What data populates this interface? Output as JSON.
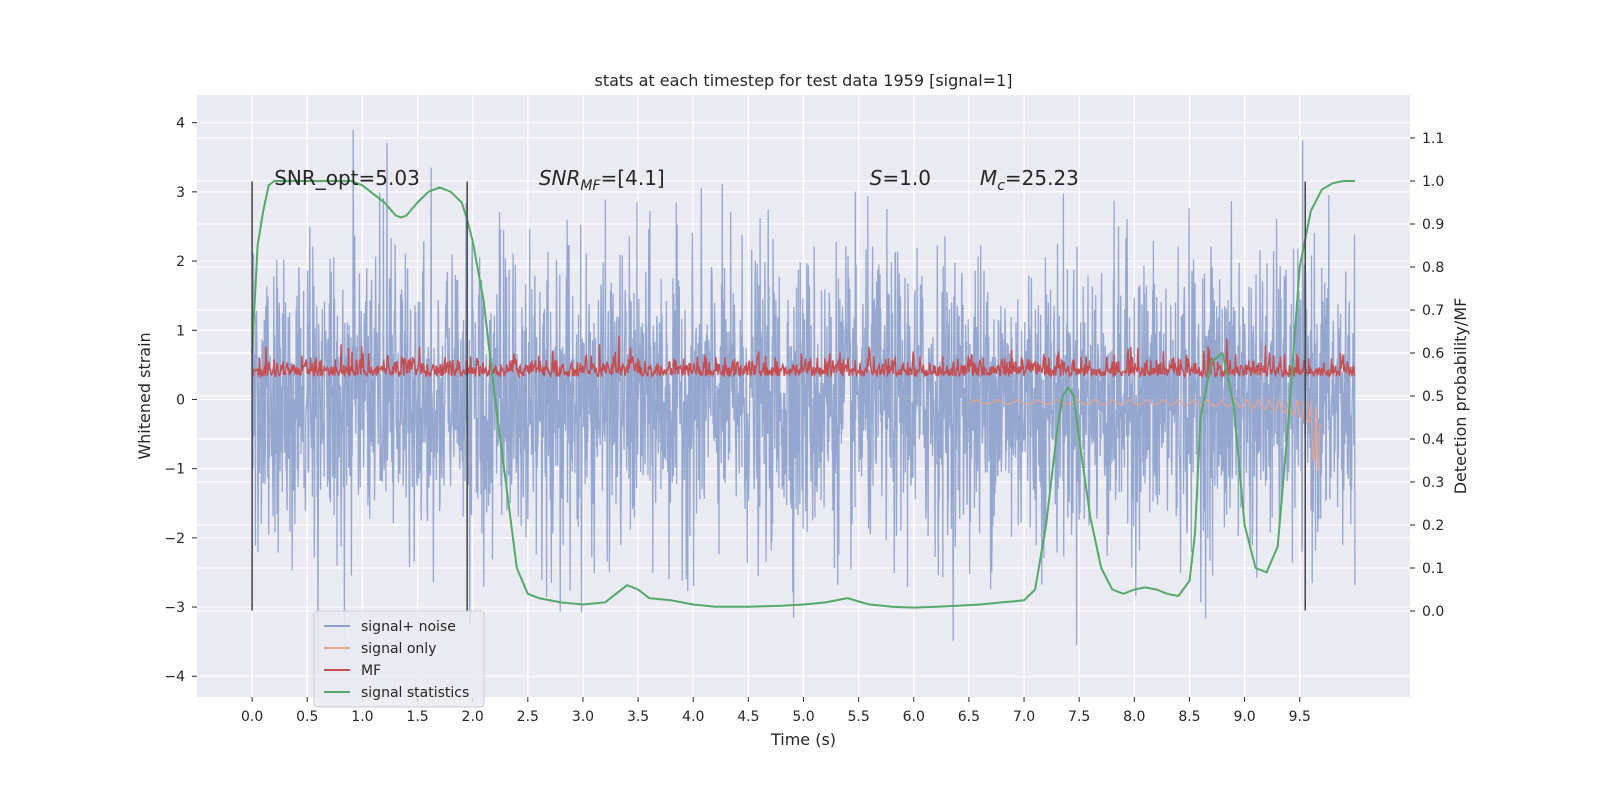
{
  "chart_data": {
    "type": "line",
    "title": "stats at each timestep for test data 1959 [signal=1]",
    "xlabel": "Time (s)",
    "ylabel": "Whitened strain",
    "ylabel_right": "Detection probability/MF",
    "xlim": [
      -0.5,
      10.5
    ],
    "ylim": [
      -4.3,
      4.4
    ],
    "ylim_right": [
      -0.2,
      1.2
    ],
    "x_ticks": [
      0.0,
      0.5,
      1.0,
      1.5,
      2.0,
      2.5,
      3.0,
      3.5,
      4.0,
      4.5,
      5.0,
      5.5,
      6.0,
      6.5,
      7.0,
      7.5,
      8.0,
      8.5,
      9.0,
      9.5
    ],
    "x_tick_labels": [
      "0.0",
      "0.5",
      "1.0",
      "1.5",
      "2.0",
      "2.5",
      "3.0",
      "3.5",
      "4.0",
      "4.5",
      "5.0",
      "5.5",
      "6.0",
      "6.5",
      "7.0",
      "7.5",
      "8.0",
      "8.5",
      "9.0",
      "9.5"
    ],
    "y_ticks": [
      -4,
      -3,
      -2,
      -1,
      0,
      1,
      2,
      3,
      4
    ],
    "y_tick_labels": [
      "−4",
      "−3",
      "−2",
      "−1",
      "0",
      "1",
      "2",
      "3",
      "4"
    ],
    "y_right_ticks": [
      0.0,
      0.1,
      0.2,
      0.3,
      0.4,
      0.5,
      0.6,
      0.7,
      0.8,
      0.9,
      1.0,
      1.1
    ],
    "y_right_tick_labels": [
      "0.0",
      "0.1",
      "0.2",
      "0.3",
      "0.4",
      "0.5",
      "0.6",
      "0.7",
      "0.8",
      "0.9",
      "1.0",
      "1.1"
    ],
    "grid": true,
    "legend_position": "lower-left",
    "series": [
      {
        "name": "signal+ noise",
        "axis": "left",
        "color": "#8da0cb",
        "description_note": "dense noisy strain trace between approx -3.5 and 3.9 over 0 to 10 s",
        "x_range": [
          0.0,
          10.0
        ],
        "approx_envelope": [
          -3.0,
          3.0
        ]
      },
      {
        "name": "signal only",
        "axis": "left",
        "color": "#e8a48c",
        "description_note": "chirp signal near 0, growing to about -1.15 near 9.65 s",
        "x_range": [
          6.5,
          9.7
        ]
      },
      {
        "name": "MF",
        "axis": "left",
        "color": "#c44e52",
        "x_range": [
          0.0,
          10.0
        ],
        "approx_envelope": [
          0.1,
          0.9
        ]
      },
      {
        "name": "signal statistics",
        "axis": "right",
        "color": "#55a868",
        "x": [
          0.0,
          0.05,
          0.1,
          0.15,
          0.2,
          0.3,
          0.5,
          0.7,
          0.9,
          1.0,
          1.1,
          1.2,
          1.3,
          1.35,
          1.4,
          1.5,
          1.6,
          1.7,
          1.8,
          1.9,
          1.95,
          2.0,
          2.1,
          2.2,
          2.3,
          2.4,
          2.5,
          2.6,
          2.8,
          3.0,
          3.2,
          3.3,
          3.4,
          3.5,
          3.6,
          3.8,
          4.0,
          4.2,
          4.5,
          4.8,
          5.0,
          5.2,
          5.4,
          5.5,
          5.6,
          5.8,
          6.0,
          6.2,
          6.4,
          6.6,
          6.8,
          7.0,
          7.1,
          7.2,
          7.3,
          7.35,
          7.4,
          7.45,
          7.5,
          7.6,
          7.7,
          7.8,
          7.9,
          8.0,
          8.1,
          8.2,
          8.3,
          8.4,
          8.5,
          8.55,
          8.6,
          8.7,
          8.8,
          8.9,
          9.0,
          9.1,
          9.2,
          9.3,
          9.4,
          9.5,
          9.6,
          9.7,
          9.8,
          9.9,
          10.0
        ],
        "y": [
          0.6,
          0.85,
          0.93,
          0.99,
          1.0,
          1.0,
          1.0,
          1.0,
          1.0,
          0.99,
          0.97,
          0.95,
          0.92,
          0.915,
          0.92,
          0.95,
          0.975,
          0.985,
          0.975,
          0.95,
          0.91,
          0.86,
          0.72,
          0.5,
          0.3,
          0.1,
          0.04,
          0.03,
          0.02,
          0.015,
          0.02,
          0.04,
          0.06,
          0.05,
          0.03,
          0.025,
          0.015,
          0.01,
          0.01,
          0.012,
          0.015,
          0.02,
          0.03,
          0.022,
          0.015,
          0.01,
          0.008,
          0.01,
          0.012,
          0.015,
          0.02,
          0.025,
          0.05,
          0.2,
          0.42,
          0.5,
          0.52,
          0.5,
          0.4,
          0.22,
          0.1,
          0.05,
          0.04,
          0.05,
          0.055,
          0.05,
          0.04,
          0.035,
          0.07,
          0.18,
          0.45,
          0.58,
          0.6,
          0.48,
          0.2,
          0.1,
          0.09,
          0.15,
          0.45,
          0.8,
          0.93,
          0.98,
          0.995,
          1.0,
          1.0
        ]
      }
    ],
    "vlines": [
      0.0,
      1.95,
      9.55
    ],
    "vline_range": [
      -3.05,
      3.15
    ],
    "annotations": [
      {
        "id": "snr-opt",
        "text": "SNR_opt=5.03",
        "x": 0.2,
        "y": 3.1
      },
      {
        "id": "snr-mf",
        "text_main": "SNR",
        "text_sub": "MF",
        "text_rest": "=[4.1]",
        "x": 2.6,
        "y": 3.1
      },
      {
        "id": "s-stat",
        "text_main": "S",
        "text_rest": "=1.0",
        "x": 5.6,
        "y": 3.1
      },
      {
        "id": "mc",
        "text_main": "M",
        "text_sub": "c",
        "text_rest": "=25.23",
        "x": 6.6,
        "y": 3.1
      }
    ]
  }
}
